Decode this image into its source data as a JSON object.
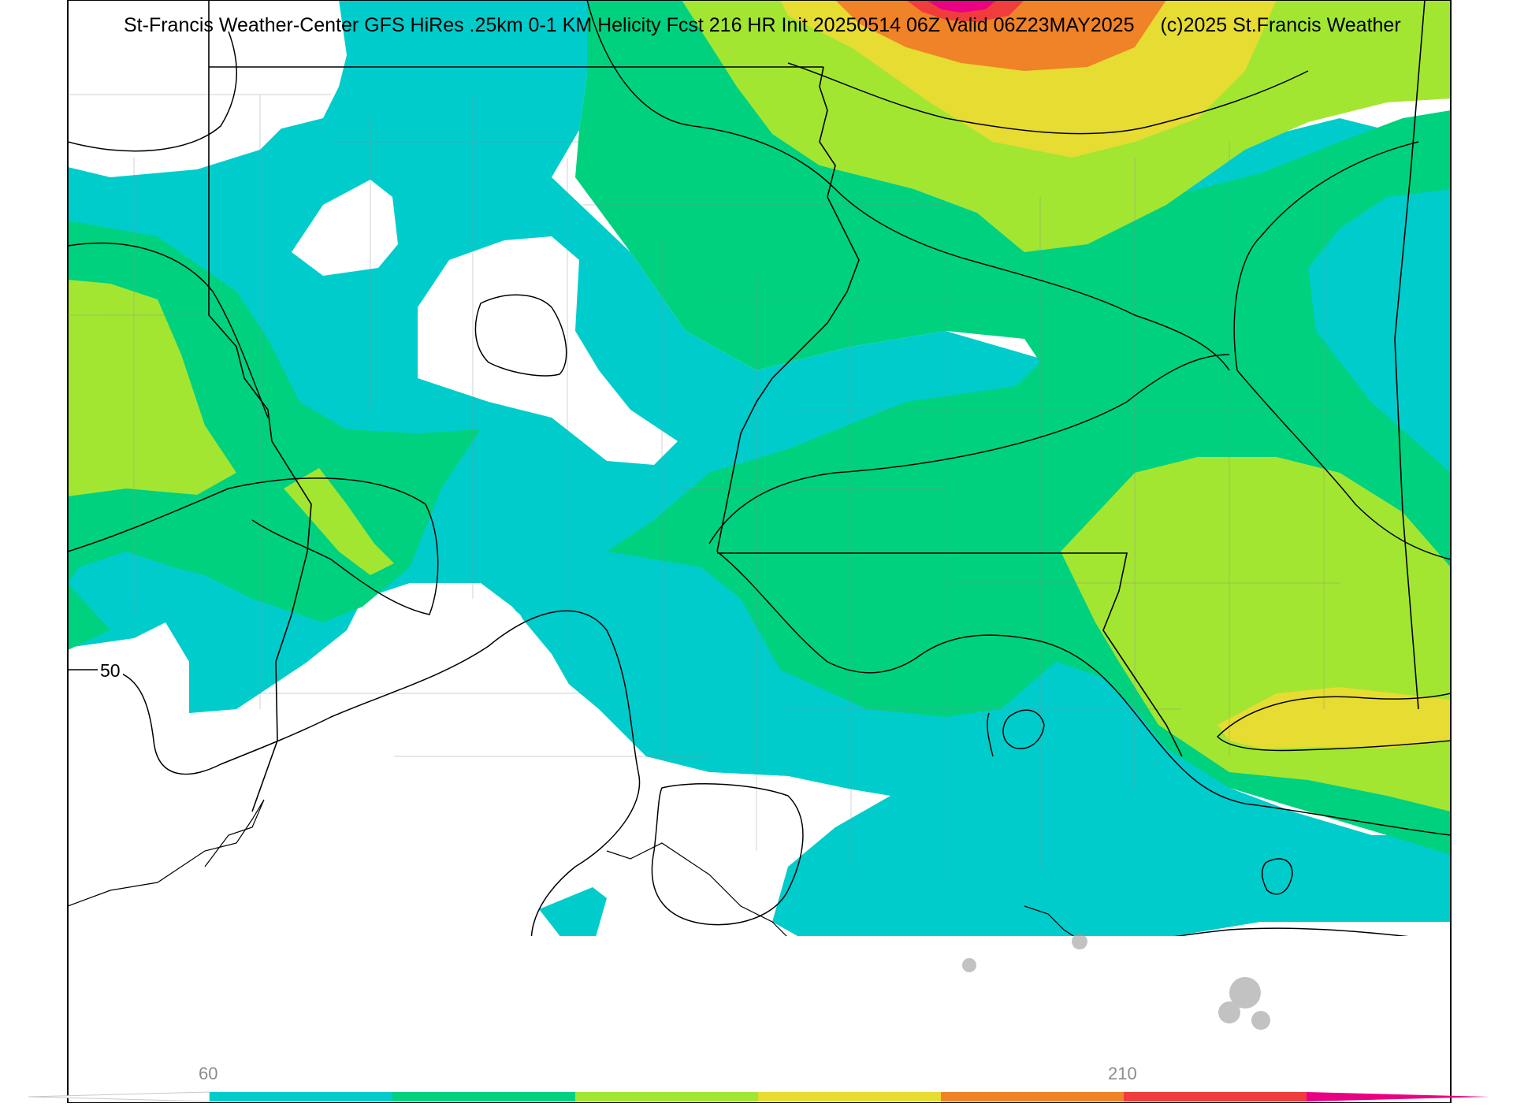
{
  "title": {
    "main": "St-Francis Weather-Center GFS HiRes .25km 0-1 KM Helicity Fcst 216 HR Init 20250514 06Z  Valid 06Z23MAY2025",
    "copyright": "(c)2025 St.Francis Weather"
  },
  "contour_label": "50",
  "colorbar": {
    "tick_labels": [
      "60",
      "210"
    ],
    "colors": [
      "#00cccc",
      "#00d17f",
      "#a2e632",
      "#e6dc32",
      "#f08228",
      "#f03c3c",
      "#ea0082"
    ]
  },
  "palette": {
    "band_60": "#00cccc",
    "band_90": "#00d17f",
    "band_120": "#a2e632",
    "band_150": "#e6dc32",
    "band_180": "#f08228",
    "band_210": "#f03c3c",
    "band_240": "#ea0082",
    "background": "#ffffff",
    "contour": "#000000",
    "county_lines": "#8c8c8c"
  }
}
